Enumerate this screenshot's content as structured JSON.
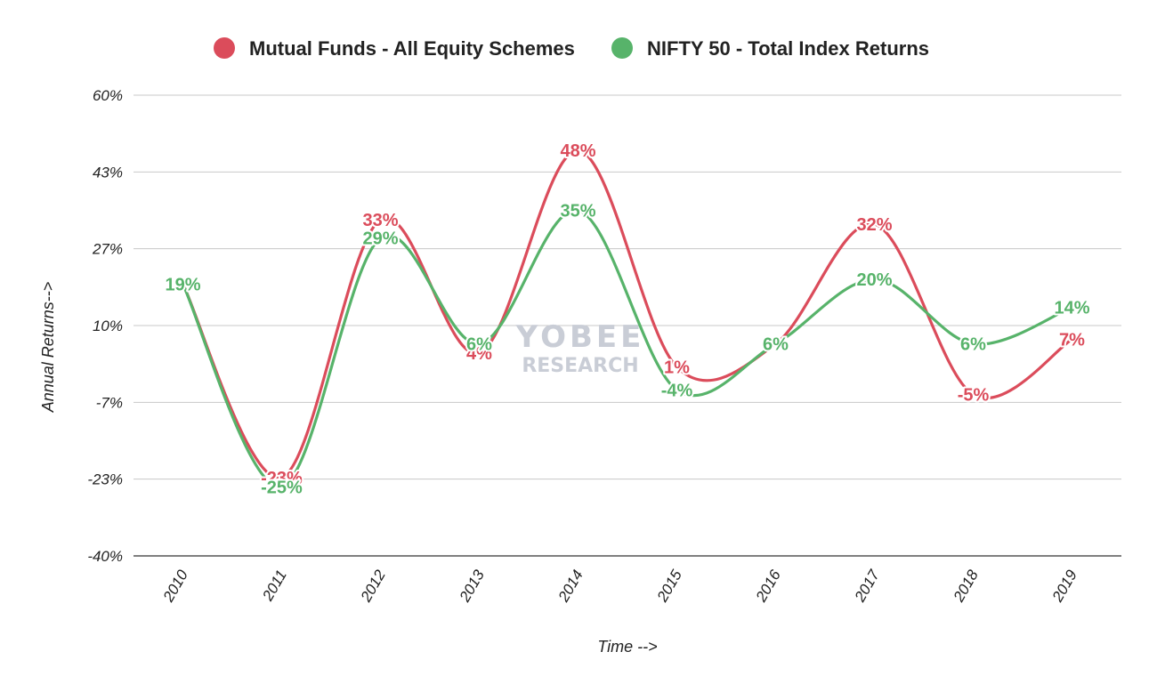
{
  "chart_data": {
    "type": "line",
    "categories": [
      "2010",
      "2011",
      "2012",
      "2013",
      "2014",
      "2015",
      "2016",
      "2017",
      "2018",
      "2019"
    ],
    "series": [
      {
        "name": "Mutual Funds - All Equity Schemes",
        "color": "#db4c5b",
        "values": [
          19,
          -23,
          33,
          4,
          48,
          1,
          6,
          32,
          -5,
          7
        ],
        "labels": [
          "",
          "-23%",
          "33%",
          "4%",
          "48%",
          "1%",
          "6%",
          "32%",
          "-5%",
          "7%"
        ]
      },
      {
        "name": "NIFTY 50 - Total Index Returns",
        "color": "#57b36a",
        "values": [
          19,
          -25,
          29,
          6,
          35,
          -4,
          6,
          20,
          6,
          14
        ],
        "labels": [
          "19%",
          "-25%",
          "29%",
          "6%",
          "35%",
          "-4%",
          "6%",
          "20%",
          "6%",
          "14%"
        ]
      }
    ],
    "y_ticks": [
      "60%",
      "43%",
      "27%",
      "10%",
      "-7%",
      "-23%",
      "-40%"
    ],
    "ylim": [
      -40,
      60
    ],
    "xlabel": "Time -->",
    "ylabel": "Annual Returns-->",
    "legend_position": "top",
    "grid": true,
    "line_style": "smooth"
  },
  "watermark": {
    "line1": "YOBEE",
    "line2": "RESEARCH"
  }
}
